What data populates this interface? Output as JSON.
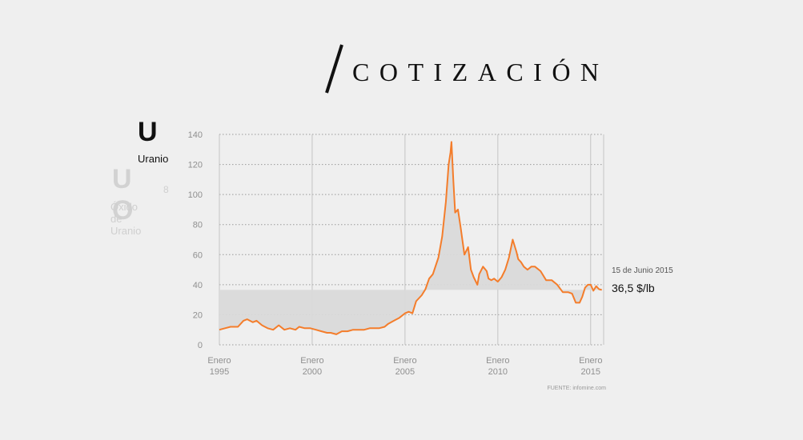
{
  "title": "COTIZACIÓN",
  "element": {
    "symbol": "U",
    "name": "Uranio",
    "compound_symbol": "U O",
    "compound_subscript": "8",
    "compound_name": "Óxido de Uranio"
  },
  "source": "FUENTE: infomine.com",
  "colors": {
    "line": "#f47d2b",
    "fill": "#d9d9d9",
    "grid": "#9a9a9a",
    "text": "#111111"
  },
  "chart_data": {
    "type": "line",
    "title": "COTIZACIÓN",
    "xlabel": "",
    "ylabel": "",
    "xlim": [
      1995.0,
      2015.7
    ],
    "ylim": [
      0,
      140
    ],
    "y_ticks": [
      0,
      20,
      40,
      60,
      80,
      100,
      120,
      140
    ],
    "x_ticks": [
      {
        "value": 1995,
        "line1": "Enero",
        "line2": "1995"
      },
      {
        "value": 2000,
        "line1": "Enero",
        "line2": "2000"
      },
      {
        "value": 2005,
        "line1": "Enero",
        "line2": "2005"
      },
      {
        "value": 2010,
        "line1": "Enero",
        "line2": "2010"
      },
      {
        "value": 2015,
        "line1": "Enero",
        "line2": "2015"
      }
    ],
    "reference": {
      "value": 36.5,
      "date_label": "15 de Junio 2015",
      "value_label": "36,5 $/lb"
    },
    "series": [
      {
        "name": "Uranio (U3O8) $/lb",
        "x": [
          1995.0,
          1995.3,
          1995.6,
          1996.0,
          1996.3,
          1996.5,
          1996.8,
          1997.0,
          1997.3,
          1997.6,
          1997.9,
          1998.2,
          1998.5,
          1998.8,
          1999.1,
          1999.3,
          1999.6,
          1999.9,
          2000.2,
          2000.5,
          2000.8,
          2001.0,
          2001.3,
          2001.6,
          2001.9,
          2002.2,
          2002.5,
          2002.8,
          2003.1,
          2003.3,
          2003.6,
          2003.9,
          2004.1,
          2004.4,
          2004.7,
          2005.0,
          2005.2,
          2005.4,
          2005.6,
          2005.9,
          2006.1,
          2006.3,
          2006.5,
          2006.8,
          2007.0,
          2007.2,
          2007.35,
          2007.45,
          2007.5,
          2007.6,
          2007.7,
          2007.85,
          2008.0,
          2008.2,
          2008.4,
          2008.55,
          2008.7,
          2008.9,
          2009.0,
          2009.2,
          2009.4,
          2009.5,
          2009.65,
          2009.8,
          2010.0,
          2010.2,
          2010.4,
          2010.6,
          2010.8,
          2011.0,
          2011.1,
          2011.25,
          2011.4,
          2011.6,
          2011.8,
          2012.0,
          2012.3,
          2012.6,
          2012.9,
          2013.2,
          2013.5,
          2013.8,
          2014.0,
          2014.2,
          2014.4,
          2014.55,
          2014.7,
          2014.85,
          2015.0,
          2015.15,
          2015.3,
          2015.45,
          2015.6
        ],
        "values": [
          10,
          11,
          12,
          12,
          16,
          17,
          15,
          16,
          13,
          11,
          10,
          13,
          10,
          11,
          10,
          12,
          11,
          11,
          10,
          9,
          8,
          8,
          7,
          9,
          9,
          10,
          10,
          10,
          11,
          11,
          11,
          12,
          14,
          16,
          18,
          21,
          22,
          21,
          29,
          33,
          37,
          44,
          47,
          58,
          72,
          95,
          120,
          128,
          135,
          110,
          88,
          90,
          78,
          60,
          65,
          50,
          45,
          40,
          47,
          52,
          49,
          44,
          43,
          44,
          42,
          45,
          50,
          58,
          70,
          62,
          57,
          55,
          52,
          50,
          52,
          52,
          49,
          43,
          43,
          40,
          35,
          35,
          34,
          28,
          28,
          32,
          38,
          40,
          40,
          36,
          39,
          37,
          36.5
        ]
      }
    ]
  }
}
